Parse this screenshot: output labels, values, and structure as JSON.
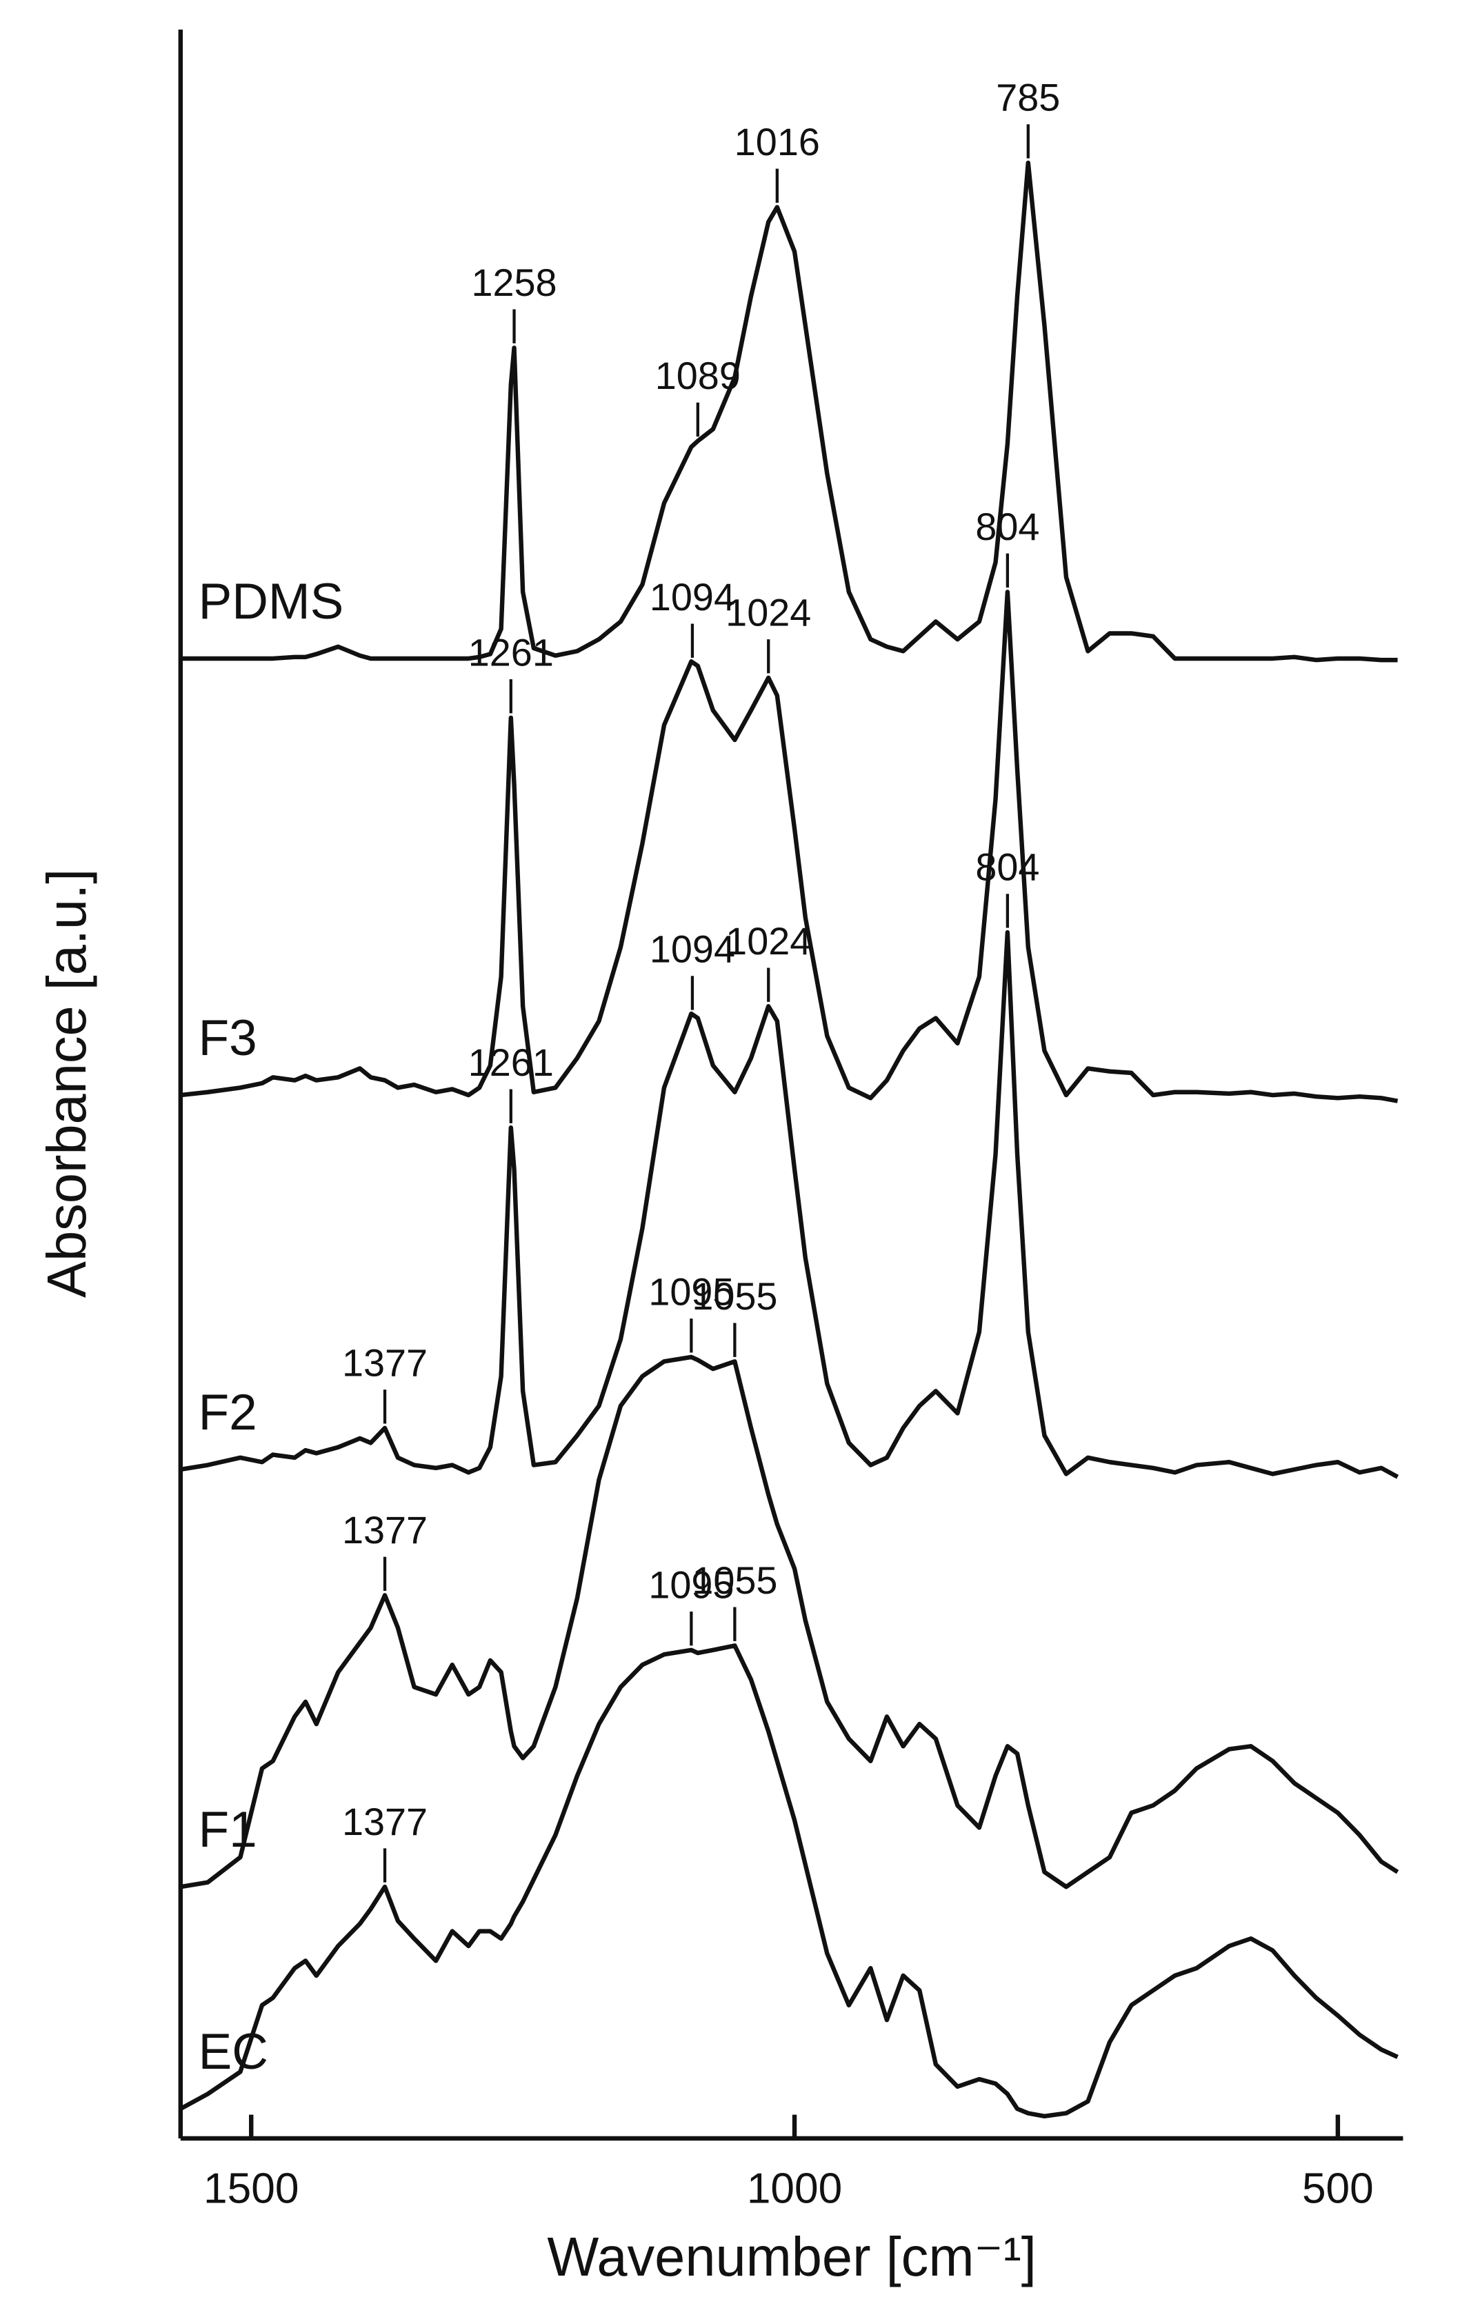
{
  "chart_data": {
    "type": "line",
    "xlabel": "Wavenumber [cm⁻¹]",
    "ylabel": "Absorbance [a.u.]",
    "xlim": [
      1565,
      440
    ],
    "ylim": [
      0,
      142.5
    ],
    "xticks": [
      1500,
      1000,
      500
    ],
    "x": [
      1565,
      1540,
      1510,
      1490,
      1480,
      1460,
      1450,
      1440,
      1420,
      1400,
      1390,
      1377,
      1365,
      1350,
      1330,
      1315,
      1300,
      1290,
      1280,
      1270,
      1261,
      1258,
      1250,
      1240,
      1220,
      1200,
      1180,
      1160,
      1140,
      1120,
      1095,
      1089,
      1075,
      1055,
      1040,
      1024,
      1016,
      1000,
      990,
      970,
      950,
      930,
      915,
      900,
      885,
      870,
      850,
      830,
      815,
      804,
      795,
      785,
      770,
      750,
      730,
      710,
      690,
      670,
      650,
      630,
      600,
      580,
      560,
      540,
      520,
      500,
      480,
      460,
      445
    ],
    "series": [
      {
        "name": "PDMS",
        "color": "#111111",
        "peaks": [
          1258,
          1089,
          1016,
          785
        ],
        "values": [
          100,
          100,
          100,
          100,
          100,
          100.1,
          100.1,
          100.3,
          100.8,
          100.2,
          100,
          100,
          100,
          100,
          100,
          100,
          100,
          100.1,
          100.3,
          102,
          118.5,
          121,
          104.5,
          100.7,
          100.2,
          100.5,
          101.3,
          102.5,
          105,
          110.5,
          114.3,
          114.7,
          115.5,
          119,
          124.5,
          129.5,
          130.5,
          127.5,
          122.5,
          112.5,
          104.5,
          101.3,
          100.8,
          100.5,
          101.5,
          102.5,
          101.3,
          102.5,
          106.5,
          114.5,
          124.5,
          133.5,
          122.5,
          105.5,
          100.5,
          101.7,
          101.7,
          101.5,
          100,
          100,
          100,
          100,
          100,
          100.1,
          99.9,
          100,
          100,
          99.9,
          99.9
        ]
      },
      {
        "name": "F3",
        "color": "#111111",
        "peaks": [
          1261,
          1094,
          1024,
          804
        ],
        "values": [
          70.5,
          70.7,
          71,
          71.3,
          71.7,
          71.5,
          71.8,
          71.5,
          71.7,
          72.3,
          71.7,
          71.5,
          71,
          71.2,
          70.7,
          70.9,
          70.5,
          71,
          72.5,
          78.5,
          96,
          91.5,
          76.5,
          70.7,
          71,
          73,
          75.5,
          80.5,
          87.5,
          95.5,
          99.8,
          99.5,
          96.5,
          94.5,
          96.5,
          98.7,
          97.5,
          88.5,
          82.5,
          74.5,
          71,
          70.3,
          71.5,
          73.5,
          75,
          75.7,
          74,
          78.5,
          90.5,
          104.5,
          92.5,
          80.5,
          73.5,
          70.5,
          72.3,
          72.1,
          72,
          70.5,
          70.7,
          70.7,
          70.6,
          70.7,
          70.5,
          70.6,
          70.4,
          70.3,
          70.4,
          70.3,
          70.1
        ]
      },
      {
        "name": "F2",
        "color": "#111111",
        "peaks": [
          1377,
          1261,
          1094,
          1024,
          804
        ],
        "values": [
          45.2,
          45.5,
          46,
          45.7,
          46.2,
          46,
          46.5,
          46.3,
          46.7,
          47.3,
          47,
          48,
          46,
          45.5,
          45.3,
          45.5,
          45,
          45.3,
          46.7,
          51.5,
          68.3,
          65.5,
          50.5,
          45.5,
          45.7,
          47.5,
          49.5,
          54,
          61.5,
          71,
          76,
          75.7,
          72.5,
          70.7,
          73,
          76.5,
          75.5,
          65.5,
          59.5,
          51,
          47,
          45.5,
          46,
          48,
          49.5,
          50.5,
          49,
          54.5,
          66.5,
          81.5,
          66.5,
          54.5,
          47.5,
          44.9,
          46,
          45.7,
          45.5,
          45.3,
          45,
          45.5,
          45.7,
          45.3,
          44.9,
          45.2,
          45.5,
          45.7,
          45,
          45.3,
          44.7
        ]
      },
      {
        "name": "F1",
        "color": "#111111",
        "peaks": [
          1377,
          1095,
          1055
        ],
        "values": [
          17,
          17.3,
          19,
          25,
          25.5,
          28.5,
          29.5,
          28,
          31.5,
          33.5,
          34.5,
          36.7,
          34.5,
          30.5,
          30,
          32,
          30,
          30.5,
          32.3,
          31.5,
          27.5,
          26.5,
          25.7,
          26.5,
          30.5,
          36.5,
          44.5,
          49.5,
          51.5,
          52.5,
          52.8,
          52.6,
          52,
          52.5,
          48,
          43.5,
          41.5,
          38.5,
          35,
          29.5,
          27,
          25.5,
          28.5,
          26.5,
          28,
          27,
          22.5,
          21,
          24.5,
          26.5,
          26,
          22.5,
          18,
          17,
          18,
          19,
          22,
          22.5,
          23.5,
          25,
          26.3,
          26.5,
          25.5,
          24,
          23,
          22,
          20.5,
          18.7,
          18
        ]
      },
      {
        "name": "EC",
        "color": "#111111",
        "peaks": [
          1377,
          1095,
          1055
        ],
        "values": [
          2,
          3,
          4.5,
          9,
          9.5,
          11.5,
          12,
          11,
          13,
          14.5,
          15.5,
          17,
          14.7,
          13.5,
          12,
          14,
          13,
          14,
          14,
          13.5,
          14.5,
          15,
          16,
          17.5,
          20.5,
          24.5,
          28,
          30.5,
          32,
          32.7,
          33,
          32.8,
          33,
          33.3,
          31,
          27.5,
          25.5,
          21.5,
          18.5,
          12.5,
          9,
          11.5,
          8,
          11,
          10,
          5,
          3.5,
          4,
          3.7,
          3,
          2,
          1.7,
          1.5,
          1.7,
          2.5,
          6.5,
          9,
          10,
          11,
          11.5,
          13,
          13.5,
          12.7,
          11,
          9.5,
          8.3,
          7,
          6,
          5.5
        ]
      }
    ]
  }
}
